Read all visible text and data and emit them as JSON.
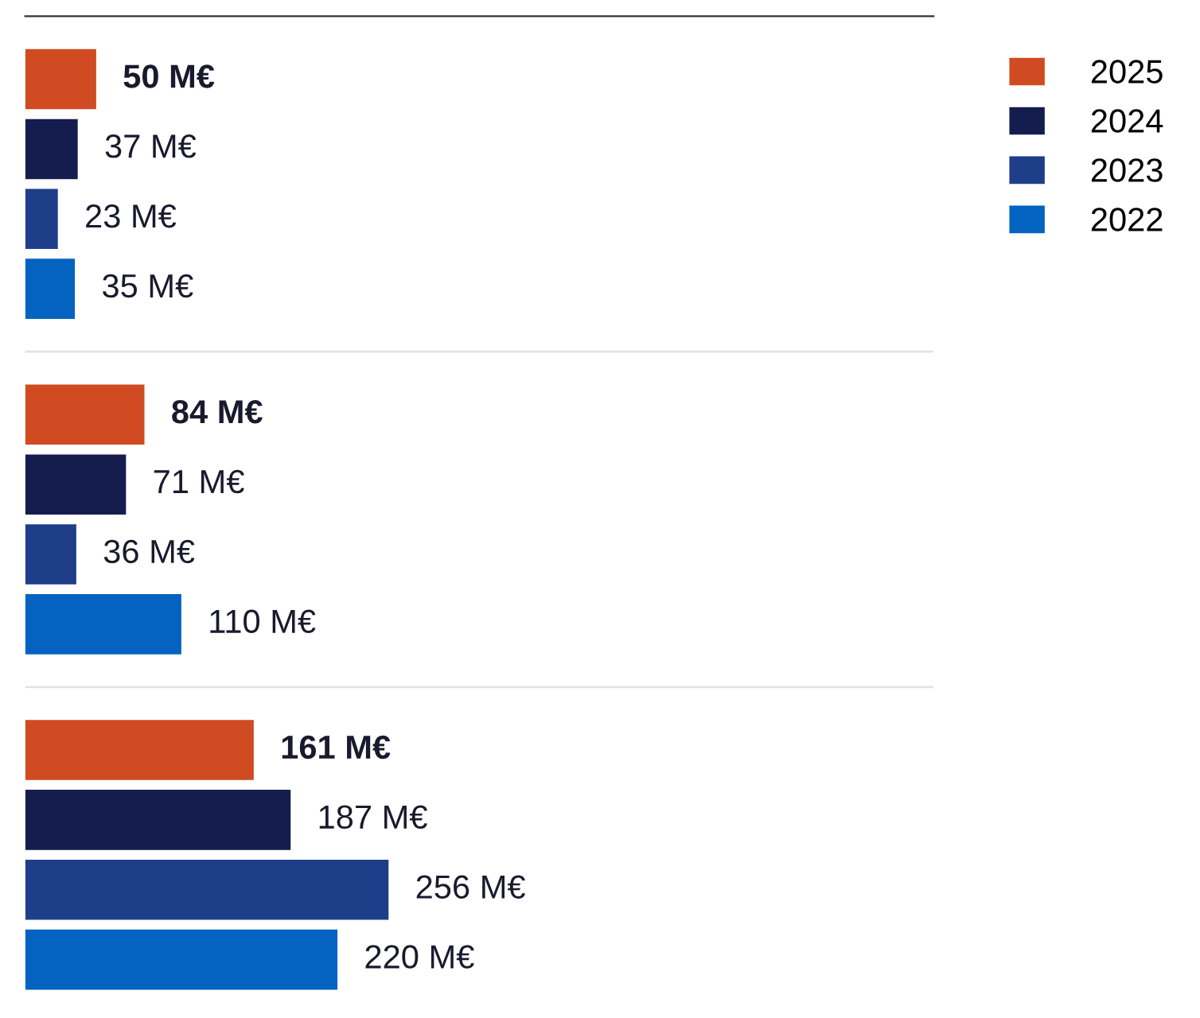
{
  "chart_data": {
    "type": "bar",
    "orientation": "horizontal",
    "categories": [
      null,
      null,
      null
    ],
    "xlim": [
      0,
      640
    ],
    "grid": "y",
    "legend": "top right",
    "series": [
      {
        "name": "2025",
        "color": "#d04a22",
        "values": [
          50,
          84,
          161
        ],
        "value_labels": [
          "50 M€",
          "84 M€",
          "161 M€"
        ]
      },
      {
        "name": "2024",
        "color": "#151c4e",
        "values": [
          37,
          71,
          187
        ],
        "value_labels": [
          "37 M€",
          "71 M€",
          "187 M€"
        ]
      },
      {
        "name": "2023",
        "color": "#1f3e8a",
        "values": [
          23,
          36,
          256
        ],
        "value_labels": [
          "23 M€",
          "36 M€",
          "256 M€"
        ]
      },
      {
        "name": "2022",
        "color": "#0463c0",
        "values": [
          35,
          110,
          220
        ],
        "value_labels": [
          "35 M€",
          "110 M€",
          "220 M€"
        ]
      }
    ]
  }
}
